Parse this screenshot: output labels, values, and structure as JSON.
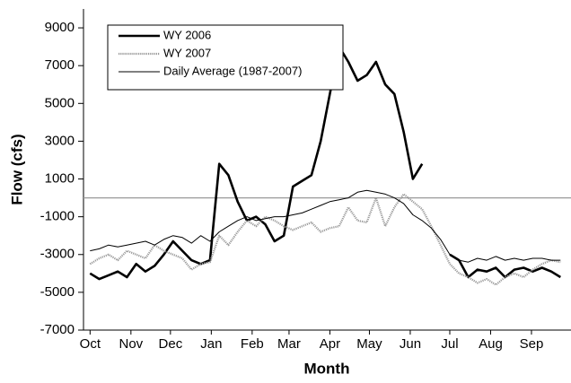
{
  "chart_data": {
    "type": "line",
    "x_label": "Month",
    "y_label": "Flow (cfs)",
    "x": [
      0,
      7,
      14,
      21,
      28,
      35,
      42,
      49,
      56,
      63,
      70,
      77,
      84,
      91,
      98,
      105,
      112,
      119,
      126,
      133,
      140,
      147,
      154,
      161,
      168,
      175,
      182,
      189,
      196,
      203,
      210,
      217,
      224,
      231,
      238,
      245,
      252,
      259,
      266,
      273,
      280,
      287,
      294,
      301,
      308,
      315,
      322,
      329,
      336,
      343,
      350,
      357
    ],
    "series": [
      {
        "name": "WY 2006",
        "color": "#000000",
        "style": "thick",
        "values": [
          -4000,
          -4300,
          -4100,
          -3900,
          -4200,
          -3500,
          -3900,
          -3600,
          -3000,
          -2300,
          -2800,
          -3300,
          -3500,
          -3300,
          1800,
          1200,
          -200,
          -1200,
          -1000,
          -1400,
          -2300,
          -2000,
          600,
          900,
          1200,
          3000,
          5500,
          8000,
          7200,
          6200,
          6500,
          7200,
          6000,
          5500,
          3500,
          1000,
          1800,
          null,
          null,
          -3000,
          -3300,
          -4200,
          -3800,
          -3900,
          -3700,
          -4200,
          -3800,
          -3700,
          -3900,
          -3700,
          -3900,
          -4200
        ]
      },
      {
        "name": "WY 2007",
        "color": "#999999",
        "style": "dotted",
        "values": [
          -3500,
          -3200,
          -3000,
          -3300,
          -2800,
          -3000,
          -3200,
          -2500,
          -2800,
          -3000,
          -3200,
          -3800,
          -3500,
          -3400,
          -2000,
          -2500,
          -1800,
          -1200,
          -1500,
          -1000,
          -1200,
          -1500,
          -1700,
          -1500,
          -1300,
          -1800,
          -1600,
          -1500,
          -500,
          -1200,
          -1300,
          0,
          -1500,
          -500,
          200,
          -200,
          -600,
          -1500,
          -2500,
          -3500,
          -4000,
          -4200,
          -4500,
          -4300,
          -4600,
          -4200,
          -4000,
          -4200,
          -3800,
          -3500,
          -3300,
          -3400
        ]
      },
      {
        "name": "Daily Average (1987-2007)",
        "color": "#000000",
        "style": "thin",
        "values": [
          -2800,
          -2700,
          -2500,
          -2600,
          -2500,
          -2400,
          -2300,
          -2500,
          -2200,
          -2000,
          -2100,
          -2400,
          -2000,
          -2300,
          -1800,
          -1500,
          -1200,
          -1000,
          -1200,
          -1100,
          -1000,
          -1000,
          -900,
          -800,
          -600,
          -400,
          -200,
          -100,
          0,
          300,
          400,
          300,
          200,
          0,
          -300,
          -900,
          -1200,
          -1600,
          -2200,
          -3000,
          -3300,
          -3400,
          -3200,
          -3300,
          -3100,
          -3300,
          -3200,
          -3300,
          -3200,
          -3200,
          -3300,
          -3300
        ]
      }
    ],
    "hline": 0,
    "hline_color": "#999999",
    "xlim": [
      -5,
      365
    ],
    "xticks": [
      {
        "value": 0,
        "label": "Oct"
      },
      {
        "value": 31,
        "label": "Nov"
      },
      {
        "value": 61,
        "label": "Dec"
      },
      {
        "value": 92,
        "label": "Jan"
      },
      {
        "value": 123,
        "label": "Feb"
      },
      {
        "value": 151,
        "label": "Mar"
      },
      {
        "value": 182,
        "label": "Apr"
      },
      {
        "value": 212,
        "label": "May"
      },
      {
        "value": 243,
        "label": "Jun"
      },
      {
        "value": 273,
        "label": "Jul"
      },
      {
        "value": 304,
        "label": "Aug"
      },
      {
        "value": 335,
        "label": "Sep"
      }
    ],
    "ylim": [
      -7000,
      10000
    ],
    "yticks": [
      -7000,
      -5000,
      -3000,
      -1000,
      1000,
      3000,
      5000,
      7000,
      9000
    ],
    "grid": false,
    "legend": "upper left"
  }
}
